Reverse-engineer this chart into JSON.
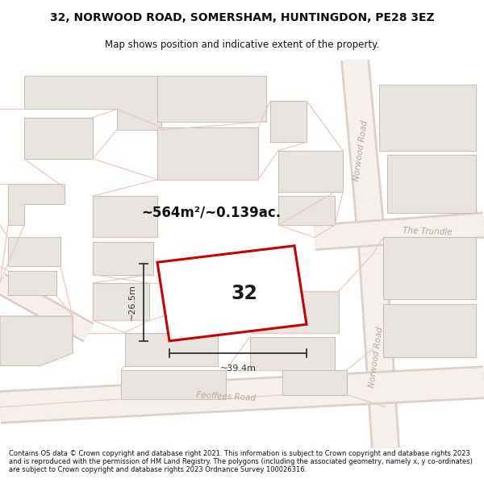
{
  "title": "32, NORWOOD ROAD, SOMERSHAM, HUNTINGDON, PE28 3EZ",
  "subtitle": "Map shows position and indicative extent of the property.",
  "footer": "Contains OS data © Crown copyright and database right 2021. This information is subject to Crown copyright and database rights 2023 and is reproduced with the permission of HM Land Registry. The polygons (including the associated geometry, namely x, y co-ordinates) are subject to Crown copyright and database rights 2023 Ordnance Survey 100026316.",
  "area_text": "~564m²/~0.139ac.",
  "width_label": "~39.4m",
  "height_label": "~26.5m",
  "plot_number": "32",
  "map_bg": "#f7f4f1",
  "building_fill": "#e8e4e0",
  "building_stroke": "#c8c0b8",
  "plot_fill": "#ffffff",
  "plot_stroke": "#cc0000",
  "street_color": "#f0c8c0",
  "road_label_color": "#b8a898",
  "title_color": "#111111",
  "footer_color": "#111111",
  "dim_color": "#333333",
  "road_fill": "#f0ece8",
  "road_edge": "#ddd0c8"
}
